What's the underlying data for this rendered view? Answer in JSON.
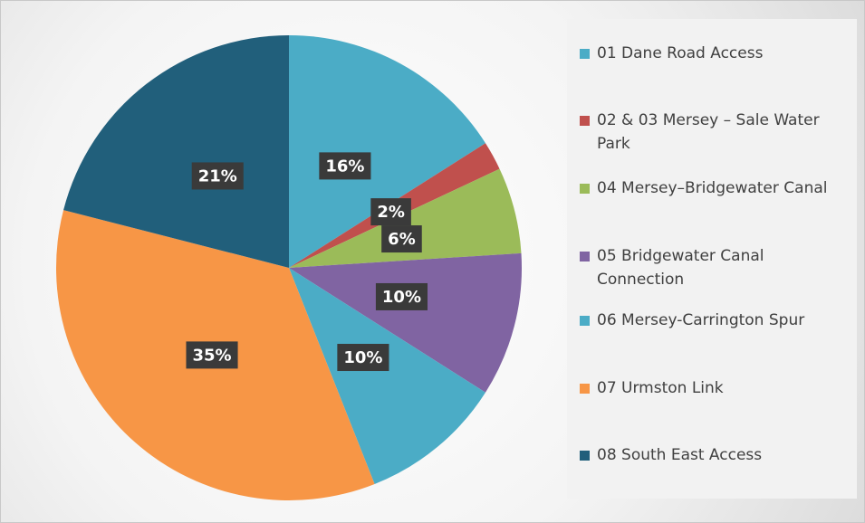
{
  "chart_data": {
    "type": "pie",
    "categories": [
      "01 Dane Road Access",
      "02 & 03 Mersey – Sale Water Park",
      "04 Mersey–Bridgewater Canal",
      "05 Bridgewater Canal Connection",
      "06 Mersey-Carrington Spur",
      "07 Urmston Link",
      "08 South East Access"
    ],
    "values": [
      16,
      2,
      6,
      10,
      10,
      35,
      21
    ],
    "value_labels": [
      "16%",
      "2%",
      "6%",
      "10%",
      "10%",
      "35%",
      "21%"
    ],
    "colors": [
      "#4bacc6",
      "#c0504d",
      "#9bbb59",
      "#8064a2",
      "#4bacc6",
      "#f79646",
      "#215f7b"
    ],
    "legend": "right"
  }
}
